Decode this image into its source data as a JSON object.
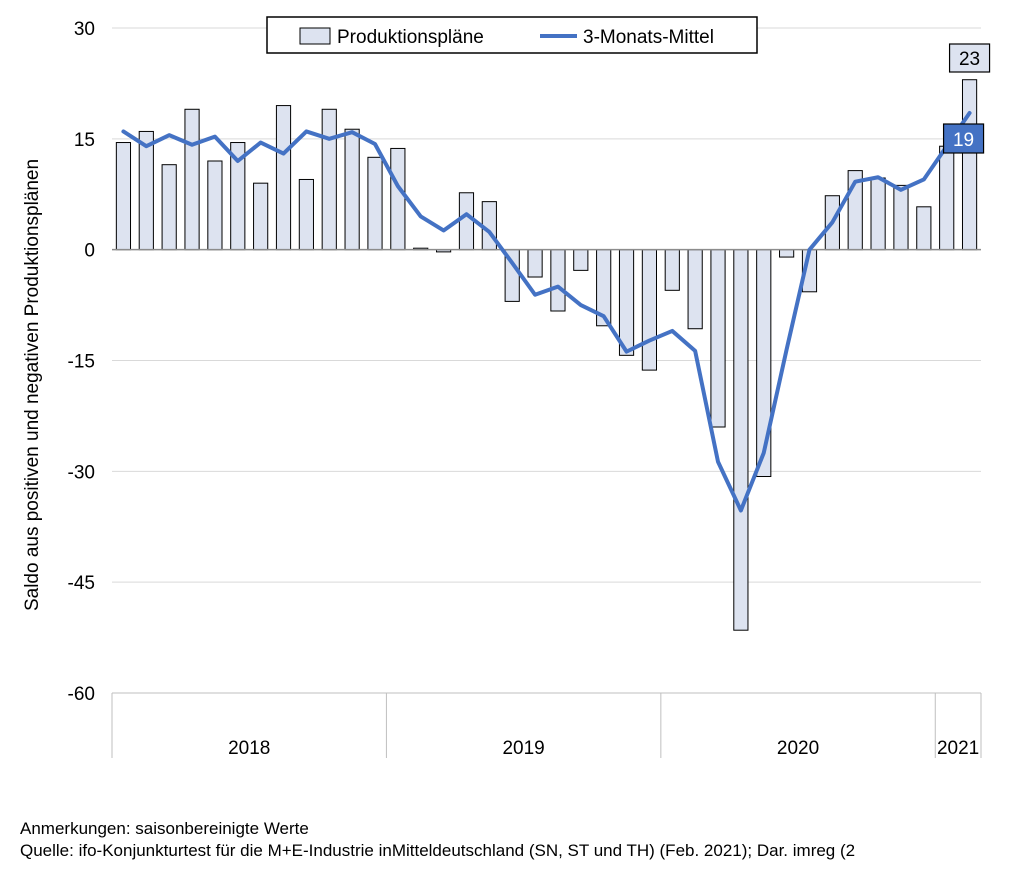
{
  "chart_data": {
    "type": "bar",
    "ylabel": "Saldo aus positiven und negativen Produktionsplänen",
    "ylim": [
      -60,
      30
    ],
    "yticks": [
      30,
      15,
      0,
      -15,
      -30,
      -45,
      -60
    ],
    "years": [
      "2018",
      "2019",
      "2020",
      "2021"
    ],
    "series": [
      {
        "name": "Produktionspläne",
        "kind": "bar",
        "color": "#dde3f0",
        "values": [
          14.5,
          16,
          11.5,
          19,
          12,
          14.5,
          9,
          19.5,
          9.5,
          19,
          16.3,
          12.5,
          13.7,
          0.2,
          -0.3,
          7.7,
          6.5,
          -7,
          -3.7,
          -8.3,
          -2.8,
          -10.3,
          -14.3,
          -16.3,
          -5.5,
          -10.7,
          -24,
          -51.5,
          -30.7,
          -1,
          -5.7,
          7.3,
          10.7,
          9.7,
          8.7,
          5.8,
          14,
          23
        ]
      },
      {
        "name": "3-Monats-Mittel",
        "kind": "line",
        "color": "#4472c4",
        "values": [
          16,
          14,
          15.5,
          14.2,
          15.3,
          12,
          14.5,
          13,
          16,
          15,
          15.9,
          14.3,
          8.6,
          4.5,
          2.6,
          4.8,
          2.4,
          -1.8,
          -6.1,
          -5,
          -7.5,
          -9,
          -13.8,
          -12.3,
          -11,
          -13.7,
          -28.7,
          -35.3,
          -27.5,
          -13.5,
          0,
          3.7,
          9.2,
          9.8,
          8.1,
          9.5,
          14,
          18.5
        ]
      }
    ],
    "callouts": {
      "bar_last": "23",
      "line_last": "19"
    }
  },
  "footer": {
    "note": "Anmerkungen: saisonbereinigte Werte",
    "source": "Quelle: ifo-Konjunkturtest für die M+E-Industrie inMitteldeutschland  (SN, ST und TH) (Feb. 2021); Dar. imreg (2"
  }
}
